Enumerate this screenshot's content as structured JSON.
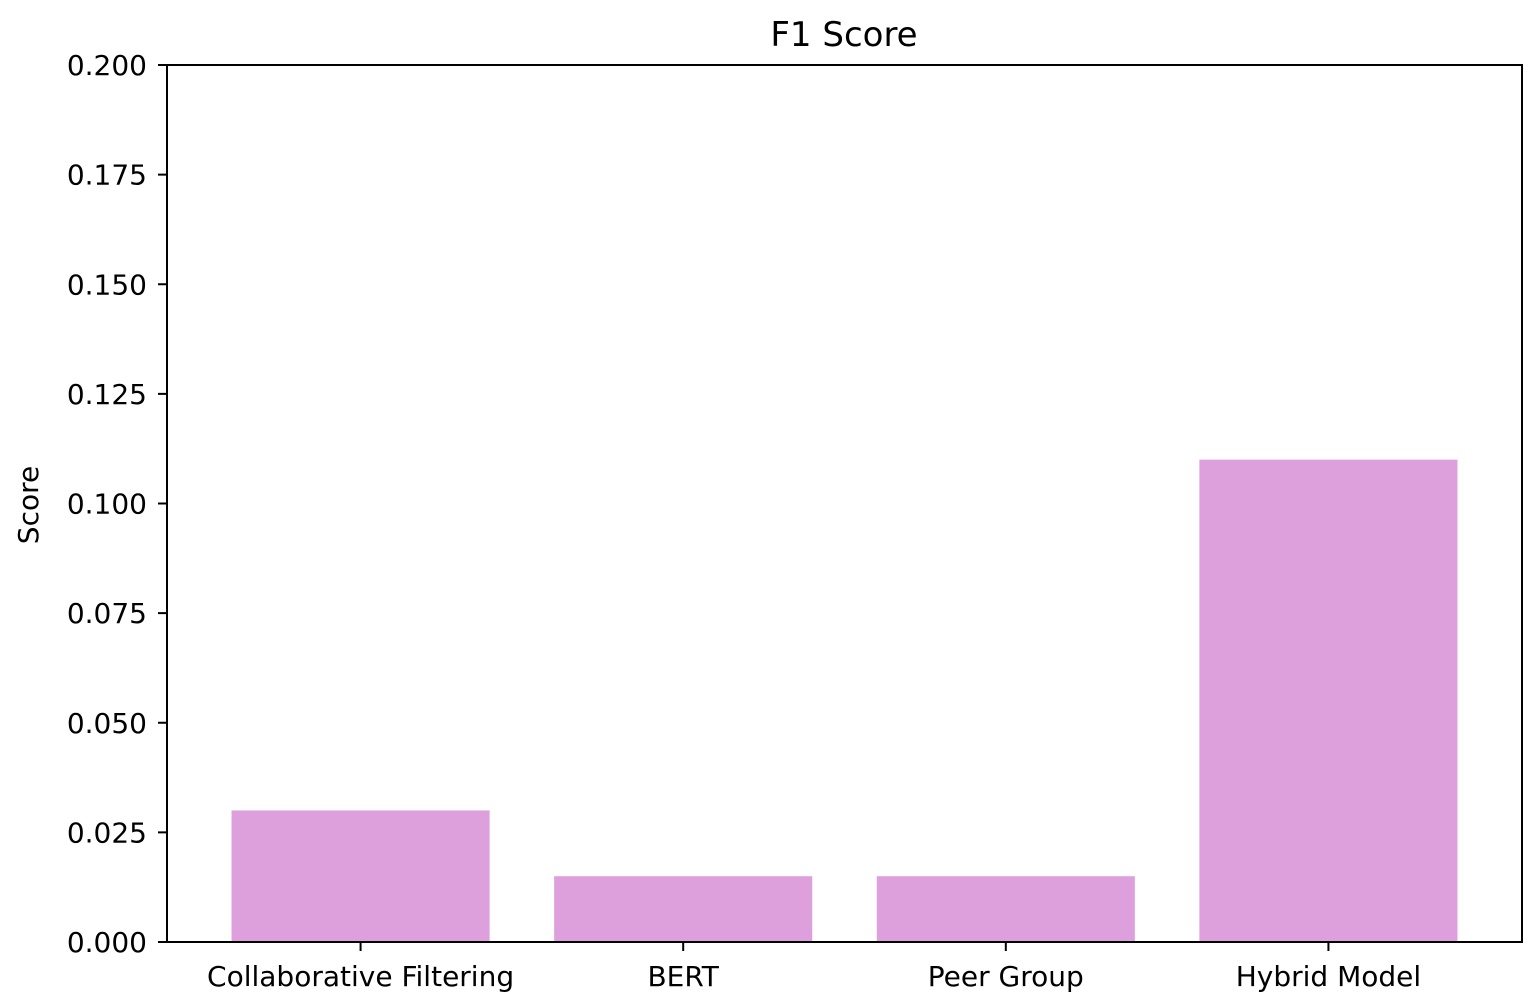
{
  "chart_data": {
    "type": "bar",
    "title": "F1 Score",
    "xlabel": "",
    "ylabel": "Score",
    "categories": [
      "Collaborative Filtering",
      "BERT",
      "Peer Group",
      "Hybrid Model"
    ],
    "values": [
      0.03,
      0.015,
      0.015,
      0.11
    ],
    "ylim": [
      0,
      0.2
    ],
    "yticks": [
      "0.000",
      "0.025",
      "0.050",
      "0.075",
      "0.100",
      "0.125",
      "0.150",
      "0.175",
      "0.200"
    ],
    "grid": false,
    "legend": "none",
    "bar_color": "#dda0dd"
  }
}
